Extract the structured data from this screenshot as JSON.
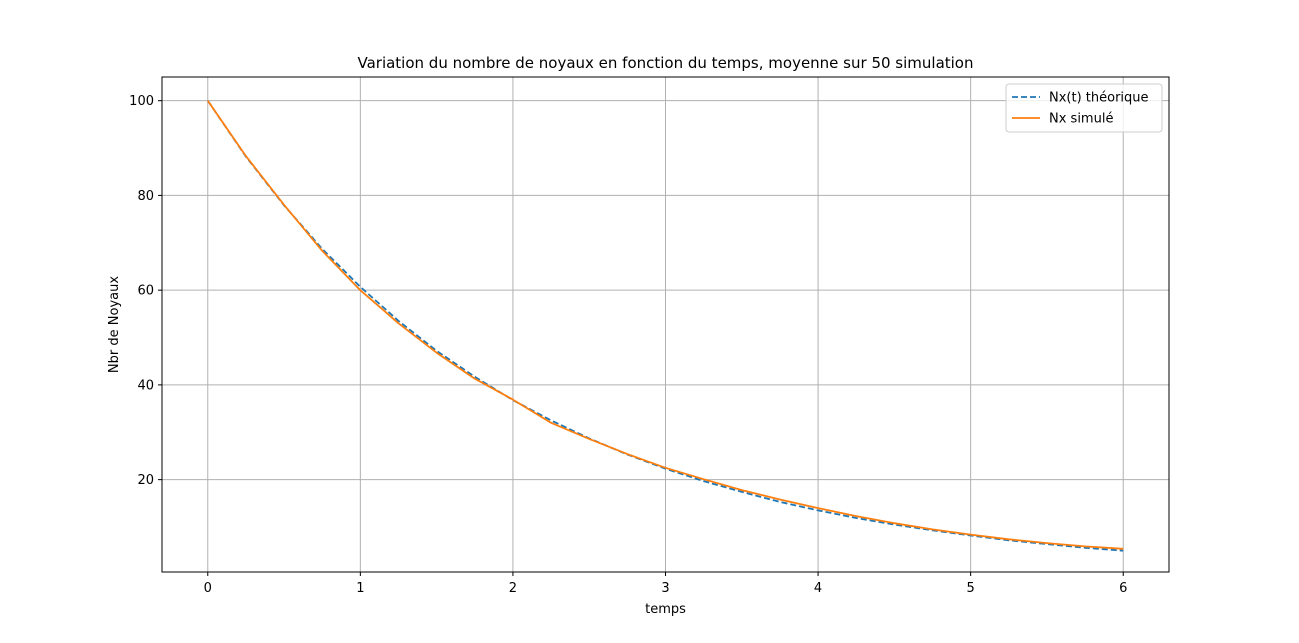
{
  "chart_data": {
    "type": "line",
    "title": "Variation du nombre de noyaux en fonction du temps, moyenne sur 50 simulation",
    "xlabel": "temps",
    "ylabel": "Nbr de Noyaux",
    "xlim": [
      -0.3,
      6.3
    ],
    "ylim": [
      0.5,
      105
    ],
    "xticks": [
      0,
      1,
      2,
      3,
      4,
      5,
      6
    ],
    "yticks": [
      20,
      40,
      60,
      80,
      100
    ],
    "grid": true,
    "legend_position": "upper-right",
    "series": [
      {
        "name": "Nx(t) théorique",
        "style": "dashed",
        "color": "#1f77b4",
        "x": [
          0,
          0.25,
          0.5,
          0.75,
          1,
          1.25,
          1.5,
          1.75,
          2,
          2.25,
          2.5,
          2.75,
          3,
          3.25,
          3.5,
          3.75,
          4,
          4.25,
          4.5,
          4.75,
          5,
          5.25,
          5.5,
          5.75,
          6
        ],
        "y": [
          100,
          88.2,
          77.9,
          68.7,
          60.7,
          53.5,
          47.2,
          41.7,
          36.8,
          32.5,
          28.7,
          25.3,
          22.3,
          19.7,
          17.4,
          15.3,
          13.5,
          11.9,
          10.5,
          9.3,
          8.2,
          7.2,
          6.4,
          5.6,
          5.0
        ]
      },
      {
        "name": "Nx simulé",
        "style": "solid",
        "color": "#ff7f0e",
        "x": [
          0,
          0.25,
          0.5,
          0.75,
          1,
          1.1,
          1.25,
          1.5,
          1.75,
          2,
          2.25,
          2.5,
          2.75,
          3,
          3.25,
          3.5,
          3.75,
          4,
          4.25,
          4.5,
          4.75,
          5,
          5.25,
          5.5,
          5.75,
          6
        ],
        "y": [
          100,
          88.3,
          78.0,
          68.3,
          60.0,
          57.2,
          53.0,
          46.8,
          41.3,
          36.9,
          32.0,
          28.6,
          25.4,
          22.5,
          20.1,
          17.8,
          15.8,
          14.0,
          12.3,
          10.8,
          9.5,
          8.4,
          7.4,
          6.6,
          5.9,
          5.4
        ]
      }
    ]
  }
}
